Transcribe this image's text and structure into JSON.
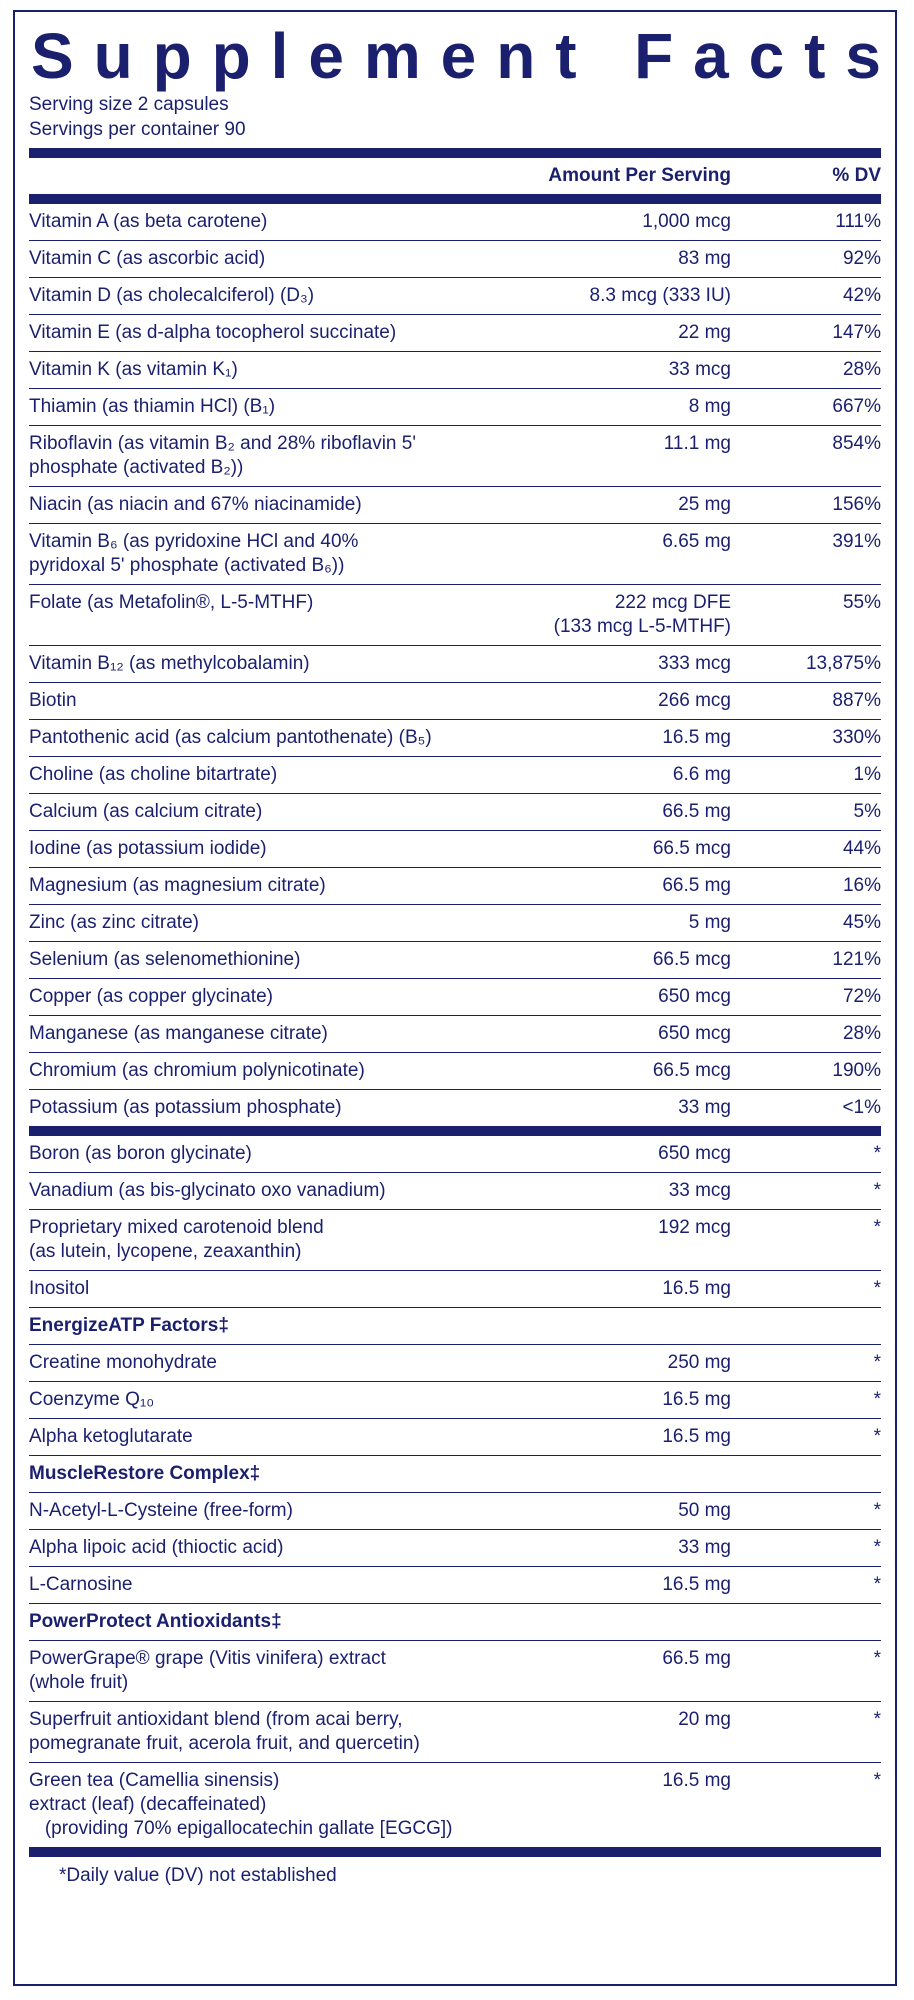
{
  "panel": {
    "title": "Supplement Facts",
    "serving_size": "Serving size  2 capsules",
    "servings_per_container": "Servings per container  90",
    "header": {
      "amount": "Amount Per Serving",
      "dv": "% DV"
    },
    "vitamins": [
      {
        "name": "Vitamin A (as beta carotene)",
        "amount": "1,000 mcg",
        "dv": "111%"
      },
      {
        "name": "Vitamin C (as ascorbic acid)",
        "amount": "83 mg",
        "dv": "92%"
      },
      {
        "name": "Vitamin D (as cholecalciferol) (D₃)",
        "amount": "8.3 mcg (333 IU)",
        "dv": "42%"
      },
      {
        "name": "Vitamin E (as d-alpha tocopherol succinate)",
        "amount": "22 mg",
        "dv": "147%"
      },
      {
        "name": "Vitamin K (as vitamin K₁)",
        "amount": "33 mcg",
        "dv": "28%"
      },
      {
        "name": "Thiamin (as thiamin HCl) (B₁)",
        "amount": "8 mg",
        "dv": "667%"
      },
      {
        "name": "Riboflavin (as vitamin B₂ and 28% riboflavin 5'\nphosphate (activated B₂))",
        "amount": "11.1 mg",
        "dv": "854%"
      },
      {
        "name": "Niacin (as niacin and 67% niacinamide)",
        "amount": "25 mg",
        "dv": "156%"
      },
      {
        "name": "Vitamin B₆ (as pyridoxine HCl and 40%\npyridoxal 5' phosphate (activated B₆))",
        "amount": "6.65 mg",
        "dv": "391%"
      },
      {
        "name": "Folate (as Metafolin®, L-5-MTHF)",
        "amount": "222 mcg DFE\n(133 mcg L-5-MTHF)",
        "dv": "55%"
      },
      {
        "name": "Vitamin B₁₂ (as methylcobalamin)",
        "amount": "333 mcg",
        "dv": "13,875%"
      },
      {
        "name": "Biotin",
        "amount": "266 mcg",
        "dv": "887%"
      },
      {
        "name": "Pantothenic acid (as calcium pantothenate) (B₅)",
        "amount": "16.5 mg",
        "dv": "330%"
      },
      {
        "name": "Choline (as choline bitartrate)",
        "amount": "6.6 mg",
        "dv": "1%"
      },
      {
        "name": "Calcium (as calcium citrate)",
        "amount": "66.5 mg",
        "dv": "5%"
      },
      {
        "name": "Iodine (as potassium iodide)",
        "amount": "66.5 mcg",
        "dv": "44%"
      },
      {
        "name": "Magnesium (as magnesium citrate)",
        "amount": "66.5 mg",
        "dv": "16%"
      },
      {
        "name": "Zinc (as zinc citrate)",
        "amount": "5 mg",
        "dv": "45%"
      },
      {
        "name": "Selenium (as selenomethionine)",
        "amount": "66.5 mcg",
        "dv": "121%"
      },
      {
        "name": "Copper (as copper glycinate)",
        "amount": "650 mcg",
        "dv": "72%"
      },
      {
        "name": "Manganese (as manganese citrate)",
        "amount": "650 mcg",
        "dv": "28%"
      },
      {
        "name": "Chromium (as chromium polynicotinate)",
        "amount": "66.5 mcg",
        "dv": "190%"
      },
      {
        "name": "Potassium (as potassium phosphate)",
        "amount": "33 mg",
        "dv": "<1%"
      }
    ],
    "others": [
      {
        "rows": [
          {
            "name": "Boron (as boron glycinate)",
            "amount": "650 mcg",
            "dv": "*"
          },
          {
            "name": "Vanadium (as bis-glycinato oxo vanadium)",
            "amount": "33 mcg",
            "dv": "*"
          },
          {
            "name": "Proprietary mixed carotenoid blend\n(as lutein, lycopene, zeaxanthin)",
            "amount": "192 mcg",
            "dv": "*"
          },
          {
            "name": "Inositol",
            "amount": "16.5 mg",
            "dv": "*"
          }
        ]
      },
      {
        "heading": "EnergizeATP Factors‡",
        "rows": [
          {
            "name": "Creatine monohydrate",
            "amount": "250 mg",
            "dv": "*"
          },
          {
            "name": "Coenzyme Q₁₀",
            "amount": "16.5 mg",
            "dv": "*"
          },
          {
            "name": "Alpha ketoglutarate",
            "amount": "16.5 mg",
            "dv": "*"
          }
        ]
      },
      {
        "heading": "MuscleRestore Complex‡",
        "rows": [
          {
            "name": "N-Acetyl-L-Cysteine (free-form)",
            "amount": "50 mg",
            "dv": "*"
          },
          {
            "name": "Alpha lipoic acid (thioctic acid)",
            "amount": "33 mg",
            "dv": "*"
          },
          {
            "name": "L-Carnosine",
            "amount": "16.5 mg",
            "dv": "*"
          }
        ]
      },
      {
        "heading": "PowerProtect Antioxidants‡",
        "rows": [
          {
            "name": "PowerGrape® grape (Vitis vinifera) extract\n(whole fruit)",
            "amount": "66.5 mg",
            "dv": "*"
          },
          {
            "name": "Superfruit antioxidant blend (from acai berry,\npomegranate fruit, acerola fruit, and quercetin)",
            "amount": "20 mg",
            "dv": "*"
          },
          {
            "name": "Green tea (Camellia sinensis)\nextract (leaf) (decaffeinated)\n   (providing 70% epigallocatechin gallate [EGCG])",
            "amount": "16.5 mg",
            "dv": "*"
          }
        ]
      }
    ],
    "footnote": "*Daily value (DV) not established"
  }
}
